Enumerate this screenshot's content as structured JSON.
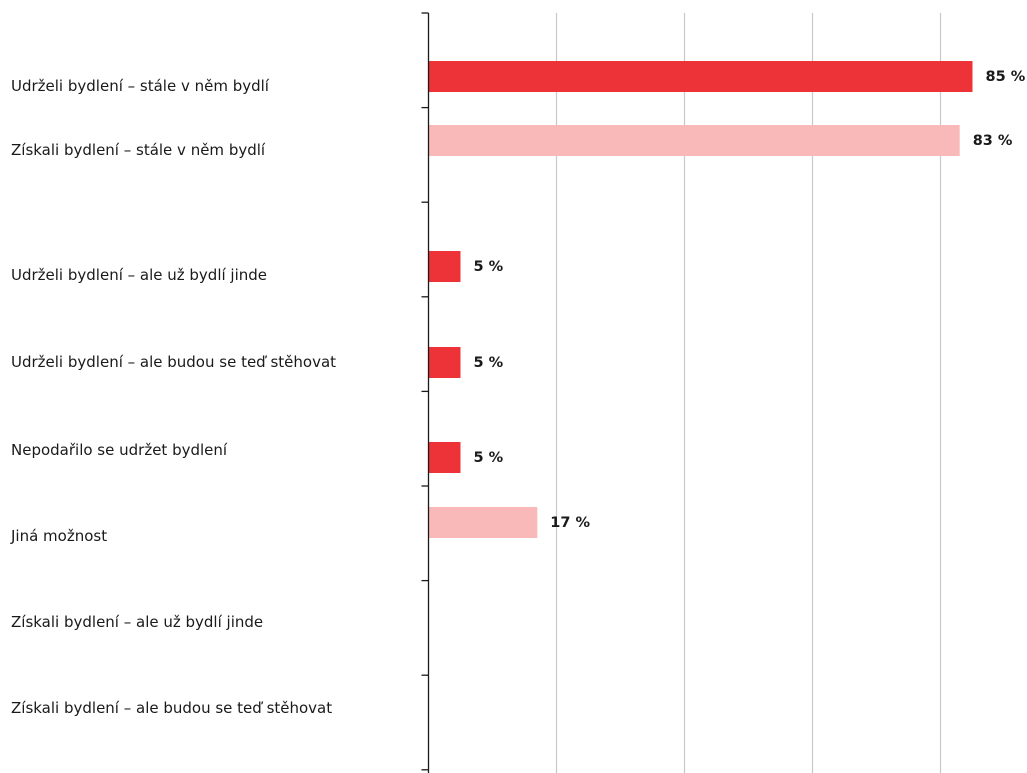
{
  "chart_data": {
    "type": "bar",
    "orientation": "horizontal",
    "categories": [
      "Udrželi bydlení – stále v něm bydlí",
      "Získali bydlení – stále v něm bydlí",
      "",
      "Udrželi bydlení – ale už bydlí jinde",
      "Udrželi bydlení – ale budou se teď stěhovat",
      "Nepodařilo se udržet bydlení",
      "Jiná možnost",
      "Získali bydlení – ale už bydlí jinde",
      "Získali bydlení – ale budou se teď stěhovat"
    ],
    "series": [
      {
        "values": [
          85,
          null,
          null,
          5,
          5,
          5,
          null,
          null,
          null
        ],
        "color": "#ee3338"
      },
      {
        "values": [
          null,
          83,
          null,
          null,
          null,
          null,
          17,
          null,
          null
        ],
        "color": "#f9b9b9"
      }
    ],
    "value_labels": [
      "85 %",
      "83 %",
      "",
      "5 %",
      "5 %",
      "5 %",
      "17 %",
      "",
      ""
    ],
    "xlim": [
      0,
      100
    ],
    "grid": "vertical",
    "title": "",
    "xlabel": "",
    "ylabel": ""
  }
}
